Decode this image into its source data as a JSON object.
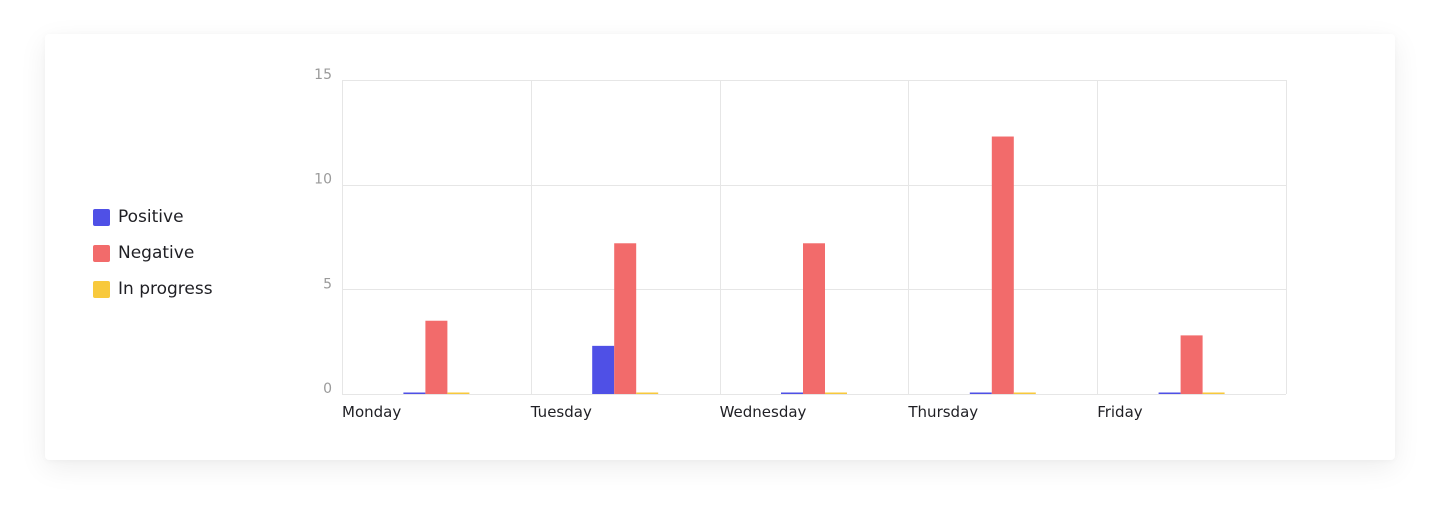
{
  "chart_data": {
    "type": "bar",
    "categories": [
      "Monday",
      "Tuesday",
      "Wednesday",
      "Thursday",
      "Friday"
    ],
    "series": [
      {
        "name": "Positive",
        "color": "#4f50e6",
        "values": [
          0,
          2.3,
          0,
          0,
          0
        ]
      },
      {
        "name": "Negative",
        "color": "#f26b6b",
        "values": [
          3.5,
          7.2,
          7.2,
          12.3,
          2.8
        ]
      },
      {
        "name": "In progress",
        "color": "#f8c93c",
        "values": [
          0,
          0,
          0,
          0,
          0
        ]
      }
    ],
    "yticks": [
      "0",
      "5",
      "10",
      "15"
    ],
    "ylim": [
      0,
      15
    ],
    "grid": true,
    "legend_position": "left"
  }
}
